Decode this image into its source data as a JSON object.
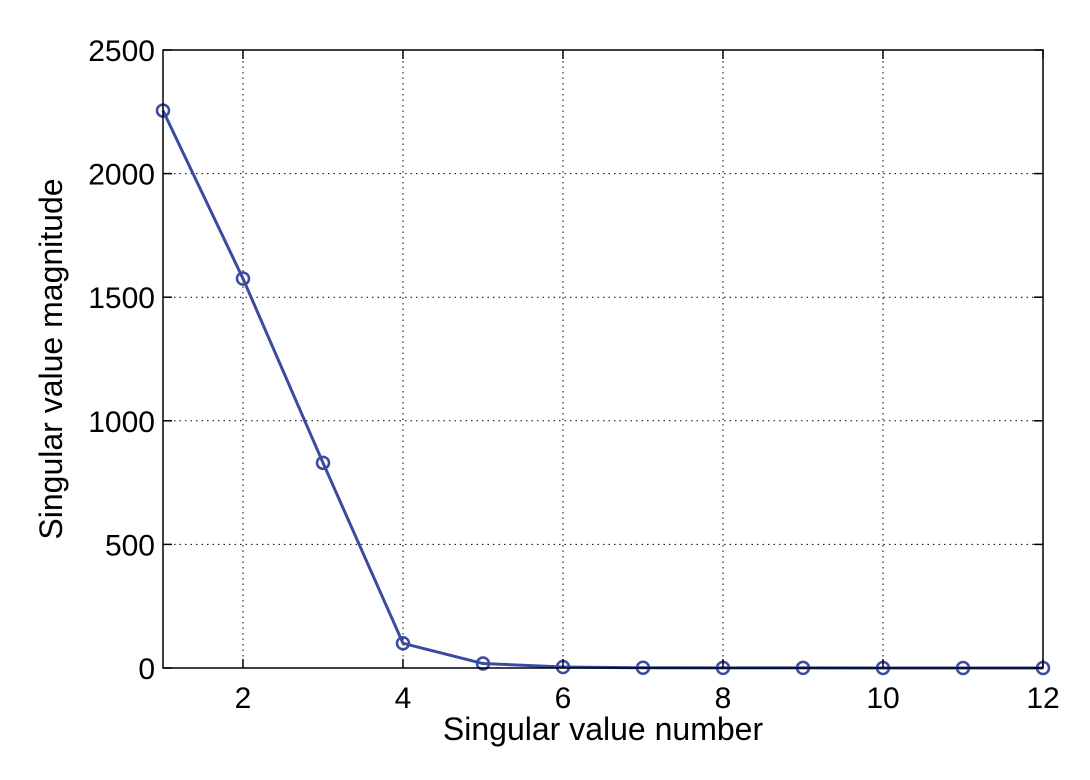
{
  "chart_data": {
    "type": "line",
    "title": "",
    "xlabel": "Singular value number",
    "ylabel": "Singular value magnitude",
    "xlim": [
      1,
      12
    ],
    "ylim": [
      0,
      2500
    ],
    "xticks": [
      2,
      4,
      6,
      8,
      10,
      12
    ],
    "yticks": [
      0,
      500,
      1000,
      1500,
      2000,
      2500
    ],
    "grid": true,
    "series": [
      {
        "marker": "circle",
        "color": "#3b4ba0",
        "x": [
          1,
          2,
          3,
          4,
          5,
          6,
          7,
          8,
          9,
          10,
          11,
          12
        ],
        "y": [
          2255,
          1575,
          830,
          100,
          18,
          4,
          1,
          0.5,
          0.3,
          0.2,
          0.1,
          0.05
        ]
      }
    ]
  }
}
